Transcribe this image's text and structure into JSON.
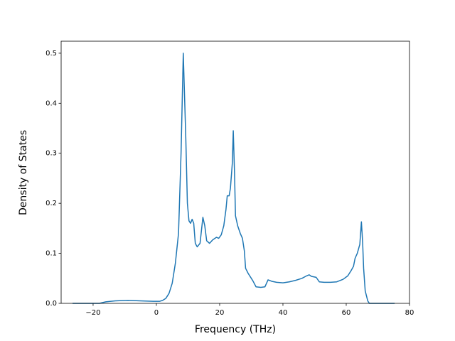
{
  "chart_data": {
    "type": "line",
    "xlabel": "Frequency (THz)",
    "ylabel": "Density of States",
    "x": [
      -26.5,
      -18,
      -16,
      -13,
      -9,
      -5,
      -1,
      1,
      2,
      3,
      4,
      5,
      6,
      7,
      7.8,
      8.5,
      9.3,
      9.8,
      10.3,
      10.8,
      11.3,
      11.8,
      12.3,
      12.9,
      13.8,
      14.7,
      15.3,
      15.9,
      16.8,
      17.8,
      19,
      19.7,
      20.5,
      21.3,
      22,
      22.4,
      23,
      23.4,
      24,
      24.3,
      24.7,
      25,
      25.7,
      26.5,
      27.2,
      27.8,
      28.2,
      29,
      30.5,
      31.5,
      33,
      34.3,
      35.3,
      36.5,
      38,
      40,
      42,
      44,
      46,
      47.5,
      48.3,
      49,
      50.5,
      51.5,
      53,
      55,
      57,
      59,
      60.5,
      61.5,
      62.3,
      62.8,
      63.5,
      64.3,
      64.8,
      65.2,
      65.5,
      66,
      66.8,
      67.3,
      70,
      75.3
    ],
    "series": [
      {
        "color": "#1f77b4",
        "values": [
          0,
          0,
          0.003,
          0.005,
          0.006,
          0.005,
          0.004,
          0.004,
          0.006,
          0.01,
          0.02,
          0.04,
          0.08,
          0.14,
          0.3,
          0.5,
          0.33,
          0.2,
          0.165,
          0.16,
          0.168,
          0.16,
          0.12,
          0.113,
          0.12,
          0.172,
          0.155,
          0.125,
          0.12,
          0.127,
          0.132,
          0.13,
          0.137,
          0.155,
          0.188,
          0.215,
          0.215,
          0.23,
          0.28,
          0.345,
          0.26,
          0.175,
          0.155,
          0.14,
          0.13,
          0.105,
          0.07,
          0.06,
          0.045,
          0.033,
          0.032,
          0.033,
          0.047,
          0.044,
          0.042,
          0.041,
          0.043,
          0.046,
          0.05,
          0.055,
          0.057,
          0.054,
          0.052,
          0.043,
          0.042,
          0.042,
          0.043,
          0.048,
          0.055,
          0.065,
          0.074,
          0.09,
          0.1,
          0.118,
          0.163,
          0.12,
          0.07,
          0.025,
          0.005,
          0,
          0,
          0
        ]
      }
    ],
    "xlim": [
      -30.1,
      80
    ],
    "ylim": [
      0,
      0.524
    ],
    "xticks": [
      {
        "value": -20,
        "label": "−20"
      },
      0,
      20,
      40,
      60,
      80
    ],
    "yticks": [
      {
        "value": 0,
        "label": "0.0"
      },
      0.1,
      0.2,
      0.3,
      0.4,
      0.5
    ]
  }
}
